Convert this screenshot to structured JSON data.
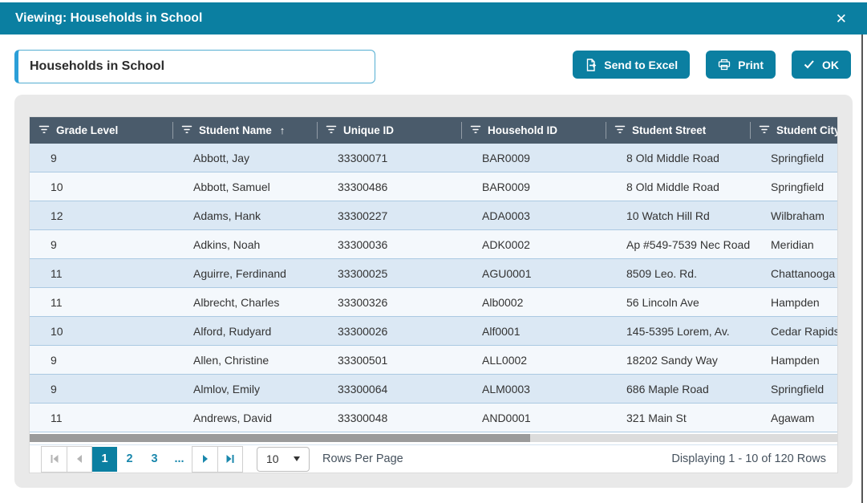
{
  "dialog": {
    "title": "Viewing: Households in School"
  },
  "icons": {
    "close": "✕",
    "sort_ascending": "↑"
  },
  "toolbar": {
    "name_input": {
      "value": "Households in School"
    },
    "send_to_excel_label": "Send to Excel",
    "print_label": "Print",
    "ok_label": "OK"
  },
  "table": {
    "columns": [
      {
        "label": "Grade Level",
        "sorted": false
      },
      {
        "label": "Student Name",
        "sorted": true
      },
      {
        "label": "Unique ID",
        "sorted": false
      },
      {
        "label": "Household ID",
        "sorted": false
      },
      {
        "label": "Student Street",
        "sorted": false
      },
      {
        "label": "Student City",
        "sorted": false
      }
    ],
    "rows": [
      [
        "9",
        "Abbott, Jay",
        "33300071",
        "BAR0009",
        "8 Old Middle Road",
        "Springfield"
      ],
      [
        "10",
        "Abbott, Samuel",
        "33300486",
        "BAR0009",
        "8 Old Middle Road",
        "Springfield"
      ],
      [
        "12",
        "Adams, Hank",
        "33300227",
        "ADA0003",
        "10 Watch Hill Rd",
        "Wilbraham"
      ],
      [
        "9",
        "Adkins, Noah",
        "33300036",
        "ADK0002",
        "Ap #549-7539 Nec Road",
        "Meridian"
      ],
      [
        "11",
        "Aguirre, Ferdinand",
        "33300025",
        "AGU0001",
        "8509 Leo. Rd.",
        "Chattanooga"
      ],
      [
        "11",
        "Albrecht, Charles",
        "33300326",
        "Alb0002",
        "56 Lincoln Ave",
        "Hampden"
      ],
      [
        "10",
        "Alford, Rudyard",
        "33300026",
        "Alf0001",
        "145-5395 Lorem, Av.",
        "Cedar Rapids"
      ],
      [
        "9",
        "Allen, Christine",
        "33300501",
        "ALL0002",
        "18202 Sandy Way",
        "Hampden"
      ],
      [
        "9",
        "Almlov, Emily",
        "33300064",
        "ALM0003",
        "686 Maple Road",
        "Springfield"
      ],
      [
        "11",
        "Andrews, David",
        "33300048",
        "AND0001",
        "321 Main St",
        "Agawam"
      ]
    ]
  },
  "pagination": {
    "pages": [
      "1",
      "2",
      "3",
      "..."
    ],
    "active_page": "1",
    "rows_per_page": "10",
    "rows_per_page_label": "Rows Per Page",
    "status": "Displaying 1 - 10 of 120 Rows"
  },
  "colors": {
    "accent_teal": "#0b7fa1",
    "table_header": "#4a5b6b",
    "row_alt_blue": "#dbe8f4",
    "row_light": "#f4f8fc",
    "row_border": "#abc9e2",
    "page_link": "#1987ac",
    "panel_gray": "#e9e9e9",
    "input_accent": "#2b9fd8"
  }
}
